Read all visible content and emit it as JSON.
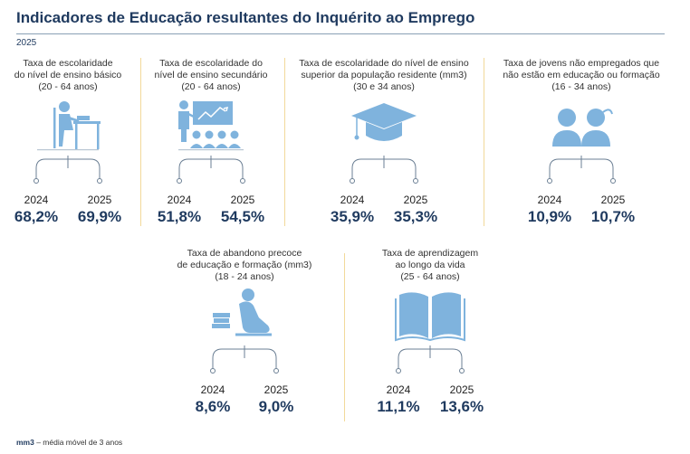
{
  "header": {
    "title": "Indicadores de Educação resultantes do Inquérito ao Emprego",
    "year": "2025"
  },
  "cards": [
    {
      "title_lines": [
        "Taxa de escolaridade",
        "do nível de ensino básico",
        "(20 - 64 anos)"
      ],
      "icon": "student-desk-icon",
      "year_a": "2024",
      "value_a": "68,2%",
      "year_b": "2025",
      "value_b": "69,9%"
    },
    {
      "title_lines": [
        "Taxa de escolaridade do",
        "nível de ensino secundário",
        "(20 - 64 anos)"
      ],
      "icon": "teacher-classroom-icon",
      "year_a": "2024",
      "value_a": "51,8%",
      "year_b": "2025",
      "value_b": "54,5%"
    },
    {
      "title_lines": [
        "Taxa de escolaridade do nível de ensino",
        "superior da população residente (mm3)",
        "(30 e 34 anos)"
      ],
      "icon": "graduation-cap-icon",
      "year_a": "2024",
      "value_a": "35,9%",
      "year_b": "2025",
      "value_b": "35,3%"
    },
    {
      "title_lines": [
        "Taxa de jovens não empregados que",
        "não estão em educação ou formação",
        "(16 - 34 anos)"
      ],
      "icon": "two-youths-icon",
      "year_a": "2024",
      "value_a": "10,9%",
      "year_b": "2025",
      "value_b": "10,7%"
    },
    {
      "title_lines": [
        "Taxa de abandono precoce",
        "de educação e formação (mm3)",
        "(18 - 24 anos)"
      ],
      "icon": "sitting-person-books-icon",
      "year_a": "2024",
      "value_a": "8,6%",
      "year_b": "2025",
      "value_b": "9,0%"
    },
    {
      "title_lines": [
        "Taxa de aprendizagem",
        "ao longo da vida",
        "(25 - 64 anos)"
      ],
      "icon": "open-book-icon",
      "year_a": "2024",
      "value_a": "11,1%",
      "year_b": "2025",
      "value_b": "13,6%"
    }
  ],
  "footnote": {
    "abbr": "mm3",
    "text": " – média móvel de 3 anos"
  },
  "colors": {
    "accent": "#1f3a5f",
    "icon": "#7fb3dd",
    "separator": "#f2d99a"
  }
}
